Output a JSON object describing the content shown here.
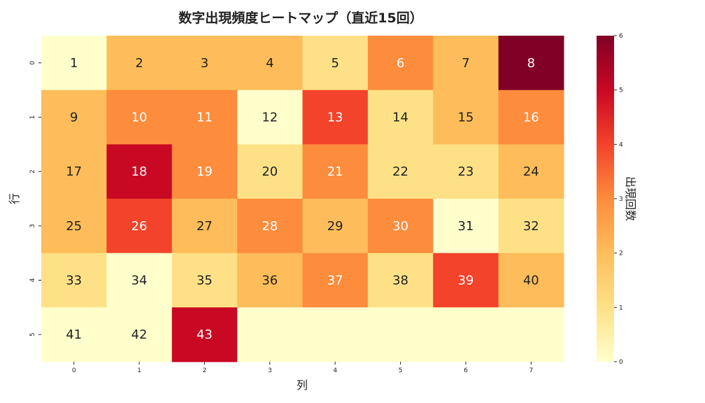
{
  "chart_data": {
    "type": "heatmap",
    "title": "数字出現頻度ヒートマップ（直近15回）",
    "xlabel": "列",
    "ylabel": "行",
    "colorbar_label": "出現回数",
    "colormap": "YlOrRd",
    "color_stops": [
      "#ffffcc",
      "#fee187",
      "#febd5a",
      "#fd8c3c",
      "#f3432a",
      "#c90823",
      "#800026"
    ],
    "vmin": 0,
    "vmax": 6,
    "colorbar_ticks": [
      "0",
      "1",
      "2",
      "3",
      "4",
      "5",
      "6"
    ],
    "x_ticks": [
      "0",
      "1",
      "2",
      "3",
      "4",
      "5",
      "6",
      "7"
    ],
    "y_ticks": [
      "0",
      "1",
      "2",
      "3",
      "4",
      "5"
    ],
    "values": [
      [
        0,
        2,
        2,
        2,
        1,
        3,
        2,
        6
      ],
      [
        2,
        3,
        3,
        0,
        4,
        1,
        2,
        3
      ],
      [
        2,
        5,
        3,
        1,
        3,
        1,
        1,
        2
      ],
      [
        2,
        4,
        2,
        3,
        2,
        3,
        0,
        1
      ],
      [
        1,
        0,
        1,
        2,
        3,
        1,
        4,
        2
      ],
      [
        0,
        0,
        5,
        0,
        0,
        0,
        0,
        0
      ]
    ],
    "annotations": [
      [
        "1",
        "2",
        "3",
        "4",
        "5",
        "6",
        "7",
        "8"
      ],
      [
        "9",
        "10",
        "11",
        "12",
        "13",
        "14",
        "15",
        "16"
      ],
      [
        "17",
        "18",
        "19",
        "20",
        "21",
        "22",
        "23",
        "24"
      ],
      [
        "25",
        "26",
        "27",
        "28",
        "29",
        "30",
        "31",
        "32"
      ],
      [
        "33",
        "34",
        "35",
        "36",
        "37",
        "38",
        "39",
        "40"
      ],
      [
        "41",
        "42",
        "43",
        "",
        "",
        "",
        "",
        ""
      ]
    ]
  }
}
